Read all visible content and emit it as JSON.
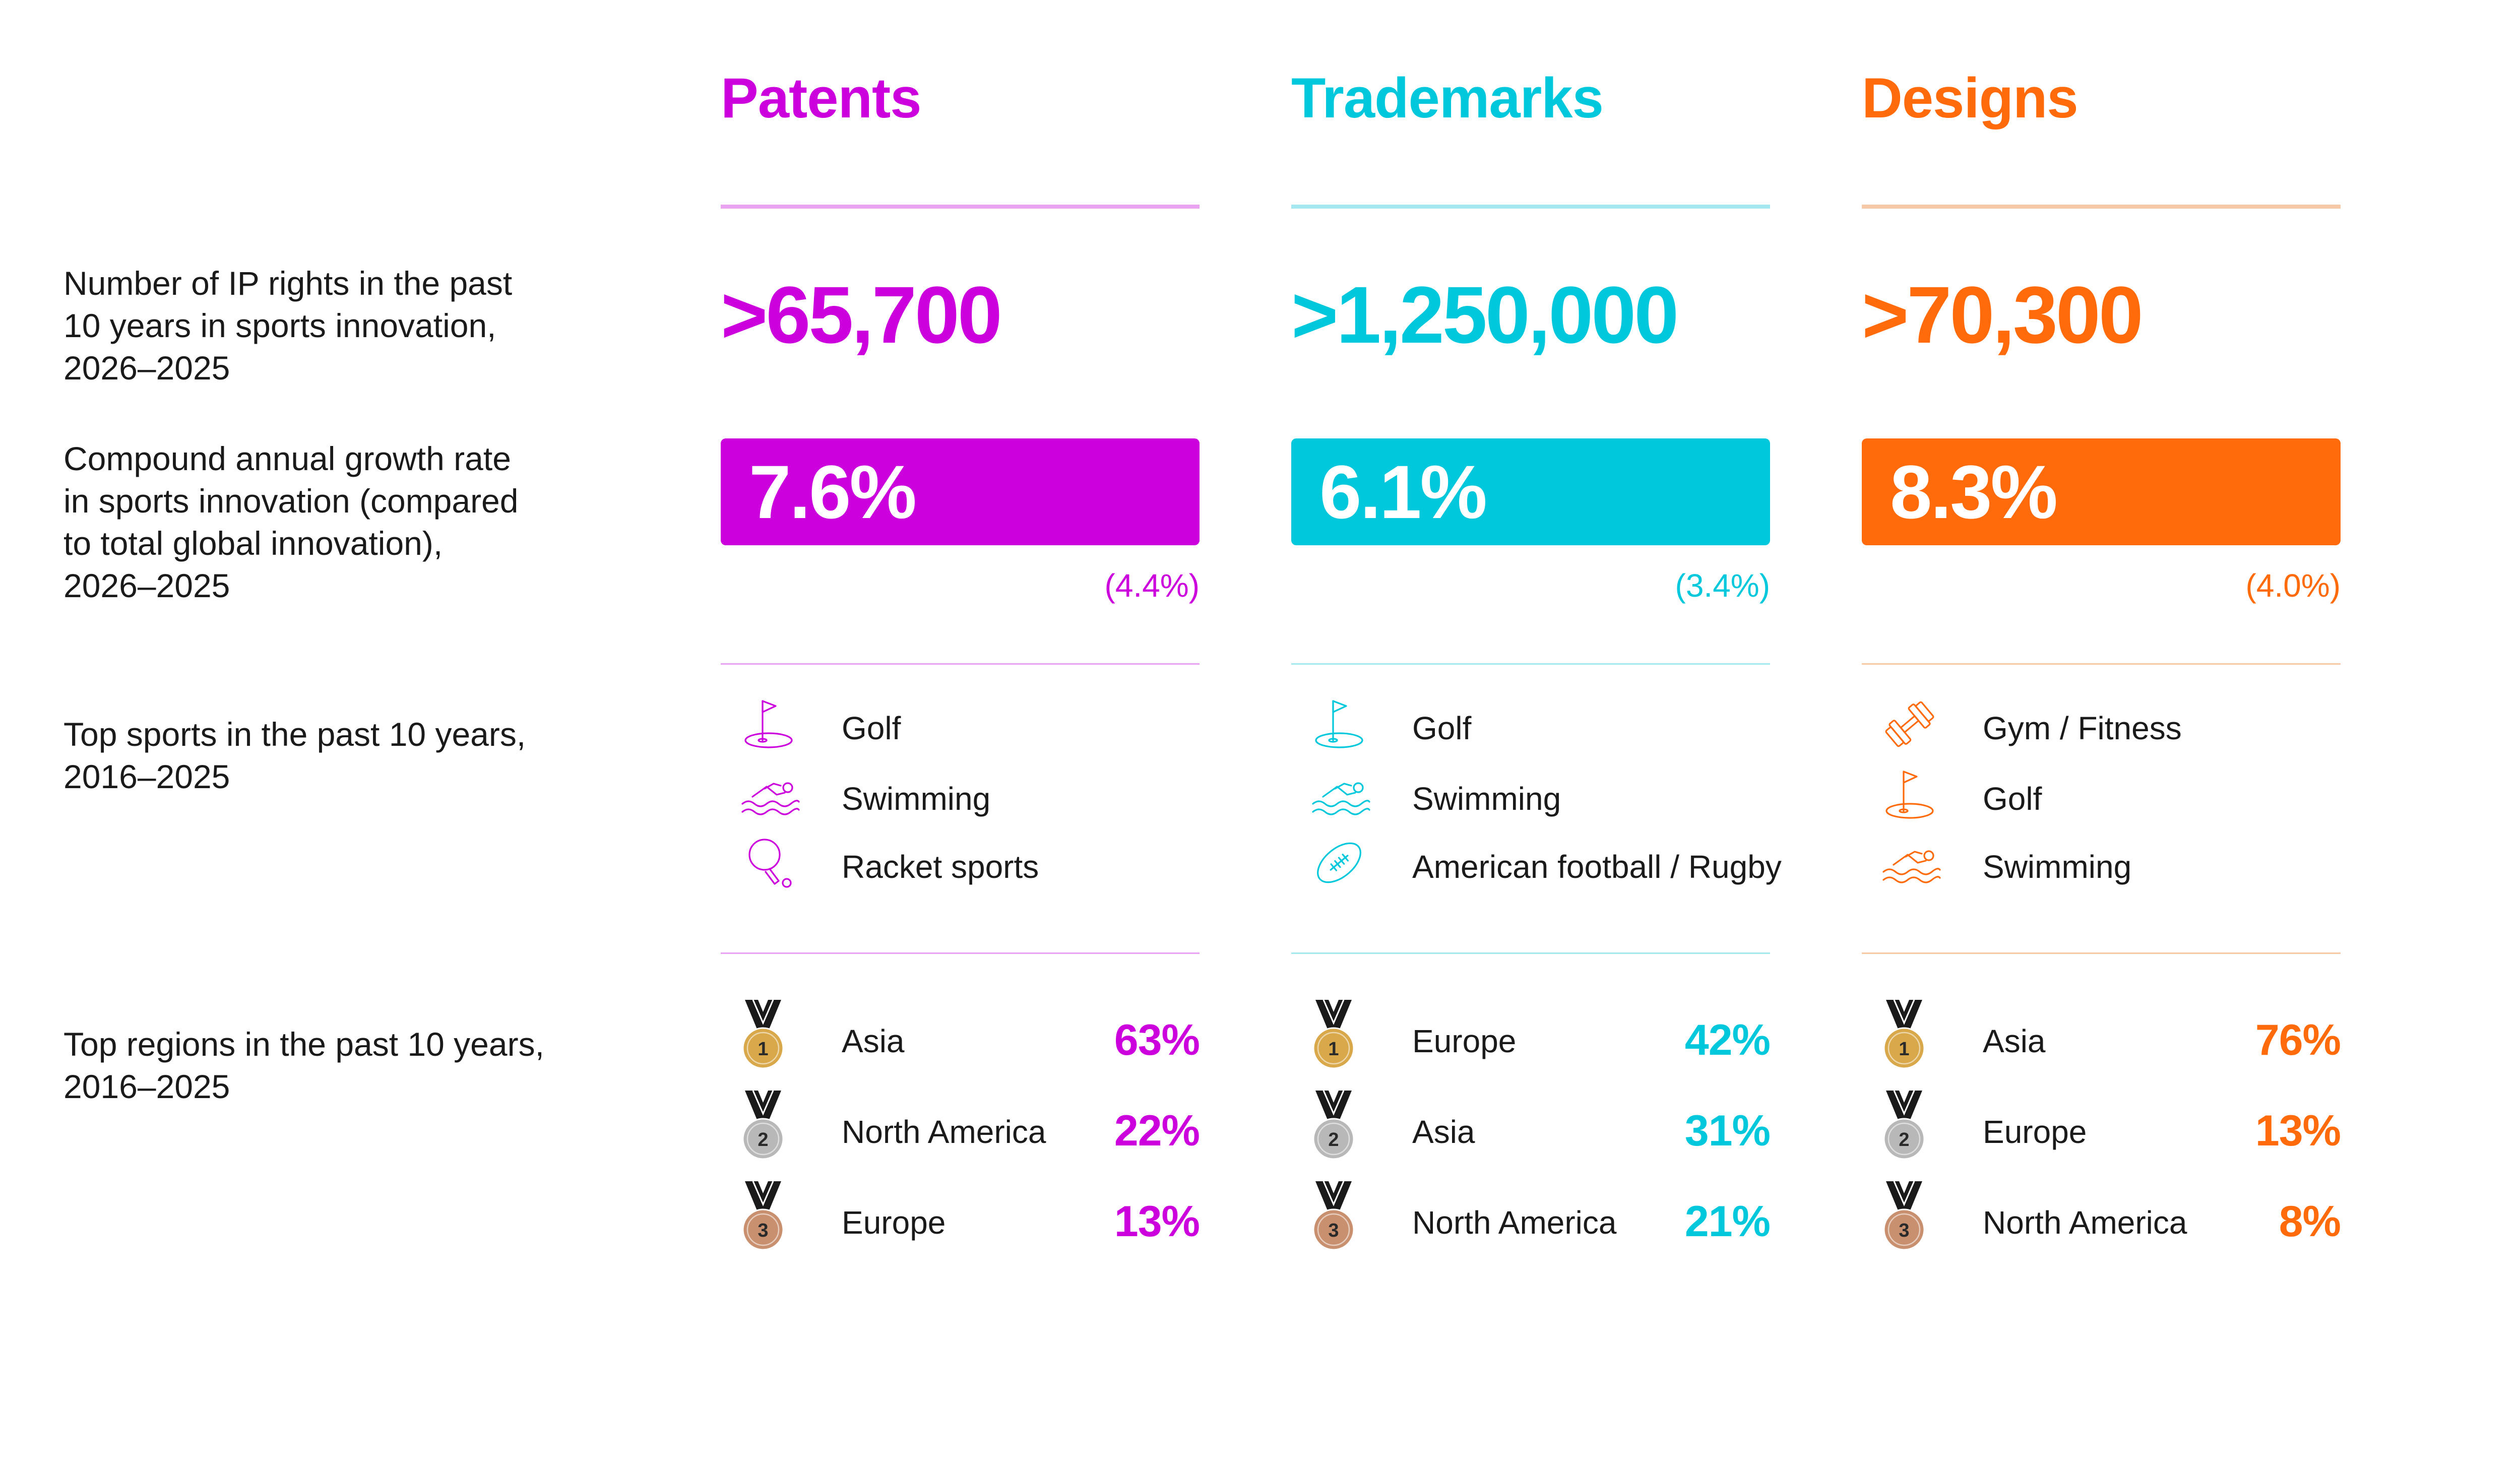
{
  "row_labels": {
    "ip_rights": [
      "Number of IP rights in the past",
      "10 years in sports innovation,",
      "2026–2025"
    ],
    "cagr": [
      "Compound annual growth rate",
      "in sports innovation (compared",
      "to total global innovation),",
      "2026–2025"
    ],
    "top_sports": [
      "Top sports in the past 10 years,",
      "2016–2025"
    ],
    "top_regions": [
      "Top regions in the past 10 years,",
      "2016–2025"
    ]
  },
  "columns": [
    {
      "title": "Patents",
      "color": "#cc00dd",
      "light_color": "#e9a3f0",
      "count": ">65,700",
      "cagr": "7.6%",
      "cagr_compare": "(4.4%)",
      "sports": [
        {
          "icon": "golf-icon",
          "label": "Golf"
        },
        {
          "icon": "swimming-icon",
          "label": "Swimming"
        },
        {
          "icon": "racket-sports-icon",
          "label": "Racket sports"
        }
      ],
      "regions": [
        {
          "rank": "1",
          "label": "Asia",
          "pct": "63%"
        },
        {
          "rank": "2",
          "label": "North America",
          "pct": "22%"
        },
        {
          "rank": "3",
          "label": "Europe",
          "pct": "13%"
        }
      ]
    },
    {
      "title": "Trademarks",
      "color": "#00c8dc",
      "light_color": "#a6e8f0",
      "count": ">1,250,000",
      "cagr": "6.1%",
      "cagr_compare": "(3.4%)",
      "sports": [
        {
          "icon": "golf-icon",
          "label": "Golf"
        },
        {
          "icon": "swimming-icon",
          "label": "Swimming"
        },
        {
          "icon": "american-football-icon",
          "label": "American football / Rugby"
        }
      ],
      "regions": [
        {
          "rank": "1",
          "label": "Europe",
          "pct": "42%"
        },
        {
          "rank": "2",
          "label": "Asia",
          "pct": "31%"
        },
        {
          "rank": "3",
          "label": "North America",
          "pct": "21%"
        }
      ]
    },
    {
      "title": "Designs",
      "color": "#ff6a0a",
      "light_color": "#f8c9a6",
      "count": ">70,300",
      "cagr": "8.3%",
      "cagr_compare": "(4.0%)",
      "sports": [
        {
          "icon": "dumbbell-icon",
          "label": "Gym / Fitness"
        },
        {
          "icon": "golf-icon",
          "label": "Golf"
        },
        {
          "icon": "swimming-icon",
          "label": "Swimming"
        }
      ],
      "regions": [
        {
          "rank": "1",
          "label": "Asia",
          "pct": "76%"
        },
        {
          "rank": "2",
          "label": "Europe",
          "pct": "13%"
        },
        {
          "rank": "3",
          "label": "North America",
          "pct": "8%"
        }
      ]
    }
  ],
  "medal_colors": {
    "1": "#d8a84a",
    "2": "#b8b8b8",
    "3": "#c99070"
  }
}
